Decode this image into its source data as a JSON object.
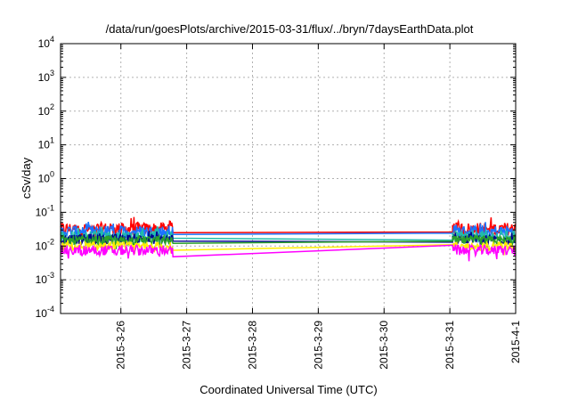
{
  "chart_data": {
    "type": "line",
    "title": "/data/run/goesPlots/archive/2015-03-31/flux/../bryn/7daysEarthData.plot",
    "xlabel": "Coordinated Universal Time (UTC)",
    "ylabel": "cSv/day",
    "xlim": [
      "2015-03-25T02:00",
      "2015-04-01T00:00"
    ],
    "ylim": [
      0.0001,
      10000
    ],
    "yscale": "log",
    "grid": true,
    "x_tick_labels": [
      "2015-3-26",
      "2015-3-27",
      "2015-3-28",
      "2015-3-29",
      "2015-3-30",
      "2015-3-31",
      "2015-4-1"
    ],
    "x_ticks": [
      "2015-03-26T00:00",
      "2015-03-27T00:00",
      "2015-03-28T00:00",
      "2015-03-29T00:00",
      "2015-03-30T00:00",
      "2015-03-31T00:00",
      "2015-04-01T00:00"
    ],
    "y_tick_labels": [
      {
        "base": "10",
        "exp": "-4"
      },
      {
        "base": "10",
        "exp": "-3"
      },
      {
        "base": "10",
        "exp": "-2"
      },
      {
        "base": "10",
        "exp": "-1"
      },
      {
        "base": "10",
        "exp": "0"
      },
      {
        "base": "10",
        "exp": "1"
      },
      {
        "base": "10",
        "exp": "2"
      },
      {
        "base": "10",
        "exp": "3"
      },
      {
        "base": "10",
        "exp": "4"
      }
    ],
    "y_ticks": [
      0.0001,
      0.001,
      0.01,
      0.1,
      1,
      10,
      100,
      1000,
      10000
    ],
    "gap": {
      "start": "2015-03-26T19:00",
      "end": "2015-03-31T01:00"
    },
    "series": [
      {
        "color": "#ff0000",
        "start_value": 0.025,
        "end_value": 0.026,
        "noisy_low": 0.015,
        "noisy_high": 0.075
      },
      {
        "color": "#1c73ff",
        "start_value": 0.022,
        "end_value": 0.024,
        "noisy_low": 0.012,
        "noisy_high": 0.055
      },
      {
        "color": "#22bbaa",
        "start_value": 0.017,
        "end_value": 0.015,
        "noisy_low": 0.01,
        "noisy_high": 0.04
      },
      {
        "color": "#000090",
        "start_value": 0.014,
        "end_value": 0.013,
        "noisy_low": 0.009,
        "noisy_high": 0.03
      },
      {
        "color": "#2aa02a",
        "start_value": 0.012,
        "end_value": 0.014,
        "noisy_low": 0.008,
        "noisy_high": 0.025
      },
      {
        "color": "#ffee00",
        "start_value": 0.0075,
        "end_value": 0.011,
        "noisy_low": 0.005,
        "noisy_high": 0.015
      },
      {
        "color": "#ff00ff",
        "start_value": 0.0048,
        "end_value": 0.0105,
        "noisy_low": 0.0033,
        "noisy_high": 0.012
      }
    ]
  }
}
